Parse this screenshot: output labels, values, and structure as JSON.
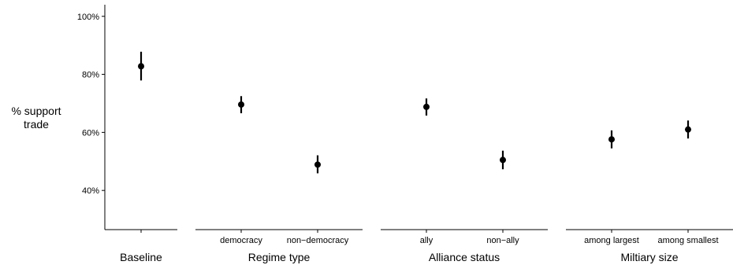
{
  "chart_data": {
    "type": "scatter",
    "ylabel_lines": [
      "% support",
      "trade"
    ],
    "y_ticks": [
      "40%",
      "60%",
      "80%",
      "100%"
    ],
    "y_tick_values": [
      40,
      60,
      80,
      100
    ],
    "ylim": [
      26.5,
      104
    ],
    "error_bars": true,
    "grid": false,
    "panels": [
      {
        "xlabel": "Baseline",
        "points": [
          {
            "category": "",
            "estimate": 82.8,
            "lower": 77.9,
            "upper": 87.8
          }
        ]
      },
      {
        "xlabel": "Regime type",
        "points": [
          {
            "category": "democracy",
            "estimate": 69.6,
            "lower": 66.6,
            "upper": 72.5
          },
          {
            "category": "non−democracy",
            "estimate": 48.9,
            "lower": 45.9,
            "upper": 52.1
          }
        ]
      },
      {
        "xlabel": "Alliance status",
        "points": [
          {
            "category": "ally",
            "estimate": 68.8,
            "lower": 65.8,
            "upper": 71.7
          },
          {
            "category": "non−ally",
            "estimate": 50.5,
            "lower": 47.3,
            "upper": 53.7
          }
        ]
      },
      {
        "xlabel": "Miltiary size",
        "points": [
          {
            "category": "among largest",
            "estimate": 57.6,
            "lower": 54.5,
            "upper": 60.7
          },
          {
            "category": "among smallest",
            "estimate": 61.0,
            "lower": 57.9,
            "upper": 64.1
          }
        ]
      }
    ]
  }
}
